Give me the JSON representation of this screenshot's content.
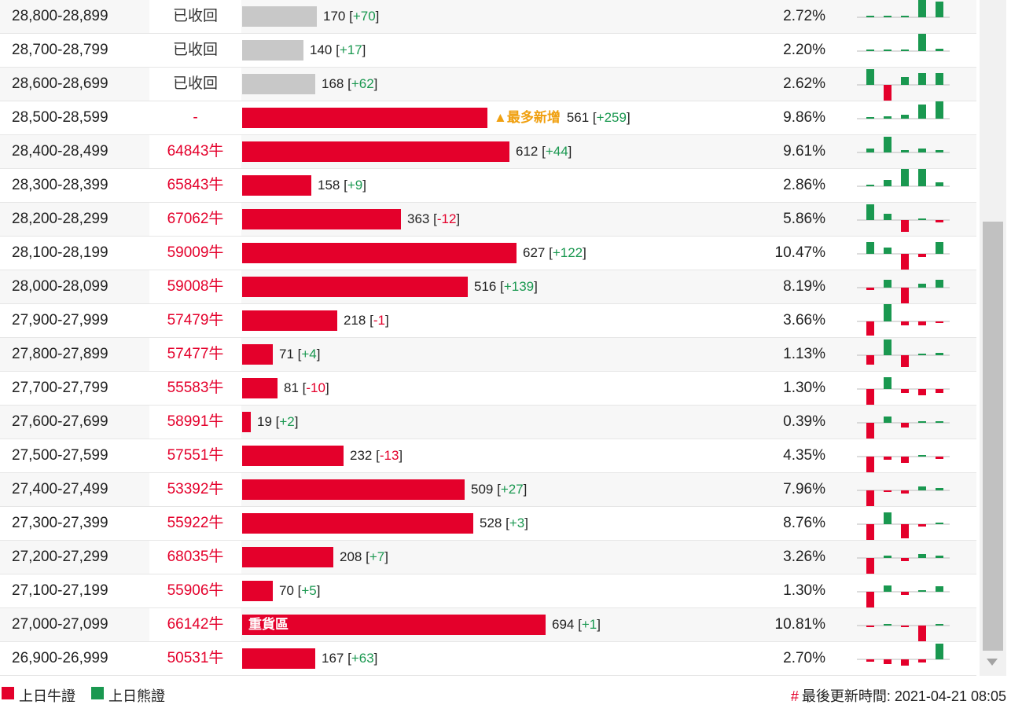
{
  "colors": {
    "bull": "#e4002b",
    "bear": "#1a9850",
    "recalled": "#c8c8c8"
  },
  "rows": [
    {
      "range": "28,800-28,899",
      "code": "已收回",
      "status": "recalled",
      "value": 170,
      "change": "+70",
      "pct": "2.72%",
      "tag": "",
      "bar_text": "",
      "spark": [
        0,
        0,
        0,
        3,
        2
      ]
    },
    {
      "range": "28,700-28,799",
      "code": "已收回",
      "status": "recalled",
      "value": 140,
      "change": "+17",
      "pct": "2.20%",
      "tag": "",
      "bar_text": "",
      "spark": [
        0,
        0,
        0.2,
        2.2,
        0.3
      ]
    },
    {
      "range": "28,600-28,699",
      "code": "已收回",
      "status": "recalled",
      "value": 168,
      "change": "+62",
      "pct": "2.62%",
      "tag": "",
      "bar_text": "",
      "spark": [
        2,
        -2,
        1,
        1.5,
        1.5
      ]
    },
    {
      "range": "28,500-28,599",
      "code": "-",
      "status": "active",
      "value": 561,
      "change": "+259",
      "pct": "9.86%",
      "tag": "▲最多新增",
      "bar_text": "",
      "spark": [
        0,
        0.3,
        0.5,
        1.8,
        2.2
      ]
    },
    {
      "range": "28,400-28,499",
      "code": "64843牛",
      "status": "active",
      "value": 612,
      "change": "+44",
      "pct": "9.61%",
      "tag": "",
      "bar_text": "",
      "spark": [
        0.5,
        2,
        0.3,
        0.5,
        0.3
      ]
    },
    {
      "range": "28,300-28,399",
      "code": "65843牛",
      "status": "active",
      "value": 158,
      "change": "+9",
      "pct": "2.86%",
      "tag": "",
      "bar_text": "",
      "spark": [
        0,
        0.8,
        2.2,
        2.2,
        0.5
      ]
    },
    {
      "range": "28,200-28,299",
      "code": "67062牛",
      "status": "active",
      "value": 363,
      "change": "-12",
      "pct": "5.86%",
      "tag": "",
      "bar_text": "",
      "spark": [
        2,
        0.8,
        -1.5,
        0.2,
        -0.3
      ]
    },
    {
      "range": "28,100-28,199",
      "code": "59009牛",
      "status": "active",
      "value": 627,
      "change": "+122",
      "pct": "10.47%",
      "tag": "",
      "bar_text": "",
      "spark": [
        1.5,
        0.8,
        -2,
        -0.4,
        1.5
      ]
    },
    {
      "range": "28,000-28,099",
      "code": "59008牛",
      "status": "active",
      "value": 516,
      "change": "+139",
      "pct": "8.19%",
      "tag": "",
      "bar_text": "",
      "spark": [
        -0.3,
        1,
        -2,
        0.5,
        1
      ]
    },
    {
      "range": "27,900-27,999",
      "code": "57479牛",
      "status": "active",
      "value": 218,
      "change": "-1",
      "pct": "3.66%",
      "tag": "",
      "bar_text": "",
      "spark": [
        -1.8,
        2.2,
        -0.5,
        -0.5,
        -0.2
      ]
    },
    {
      "range": "27,800-27,899",
      "code": "57477牛",
      "status": "active",
      "value": 71,
      "change": "+4",
      "pct": "1.13%",
      "tag": "",
      "bar_text": "",
      "spark": [
        -1.2,
        2,
        -1.5,
        0.2,
        0.3
      ]
    },
    {
      "range": "27,700-27,799",
      "code": "55583牛",
      "status": "active",
      "value": 81,
      "change": "-10",
      "pct": "1.30%",
      "tag": "",
      "bar_text": "",
      "spark": [
        -2,
        1.5,
        -0.5,
        -0.8,
        -0.5
      ]
    },
    {
      "range": "27,600-27,699",
      "code": "58991牛",
      "status": "active",
      "value": 19,
      "change": "+2",
      "pct": "0.39%",
      "tag": "",
      "bar_text": "",
      "spark": [
        -2.2,
        0.8,
        -0.6,
        0,
        0.2
      ]
    },
    {
      "range": "27,500-27,599",
      "code": "57551牛",
      "status": "active",
      "value": 232,
      "change": "-13",
      "pct": "4.35%",
      "tag": "",
      "bar_text": "",
      "spark": [
        -2,
        -0.4,
        -0.8,
        0.2,
        -0.3
      ]
    },
    {
      "range": "27,400-27,499",
      "code": "53392牛",
      "status": "active",
      "value": 509,
      "change": "+27",
      "pct": "7.96%",
      "tag": "",
      "bar_text": "",
      "spark": [
        -2.2,
        -0.2,
        -0.4,
        0.5,
        0.3
      ]
    },
    {
      "range": "27,300-27,399",
      "code": "55922牛",
      "status": "active",
      "value": 528,
      "change": "+3",
      "pct": "8.76%",
      "tag": "",
      "bar_text": "",
      "spark": [
        -2,
        1.5,
        -1.8,
        -0.3,
        0.2
      ]
    },
    {
      "range": "27,200-27,299",
      "code": "68035牛",
      "status": "active",
      "value": 208,
      "change": "+7",
      "pct": "3.26%",
      "tag": "",
      "bar_text": "",
      "spark": [
        -2,
        0.3,
        -0.4,
        0.5,
        0.3
      ]
    },
    {
      "range": "27,100-27,199",
      "code": "55906牛",
      "status": "active",
      "value": 70,
      "change": "+5",
      "pct": "1.30%",
      "tag": "",
      "bar_text": "",
      "spark": [
        -2,
        0.8,
        -0.4,
        0,
        0.7
      ]
    },
    {
      "range": "27,000-27,099",
      "code": "66142牛",
      "status": "active",
      "value": 694,
      "change": "+1",
      "pct": "10.81%",
      "tag": "",
      "bar_text": "重貨區",
      "spark": [
        -0.2,
        0.2,
        -0.2,
        -2,
        0
      ]
    },
    {
      "range": "26,900-26,999",
      "code": "50531牛",
      "status": "active",
      "value": 167,
      "change": "+63",
      "pct": "2.70%",
      "tag": "",
      "bar_text": "",
      "spark": [
        -0.3,
        -0.6,
        -0.8,
        -0.4,
        2
      ]
    }
  ],
  "bar_scale_max": 694,
  "legend": {
    "bull_label": "上日牛證",
    "bear_label": "上日熊證"
  },
  "footer": {
    "hash": "#",
    "label": "最後更新時間:",
    "timestamp": "2021-04-21 08:05"
  }
}
